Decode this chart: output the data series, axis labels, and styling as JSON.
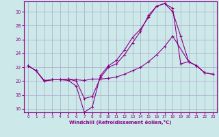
{
  "background_color": "#cce8e8",
  "grid_color": "#aaaacc",
  "line_color": "#880088",
  "xlabel": "Windchill (Refroidissement éolien,°C)",
  "xlim": [
    -0.5,
    23.5
  ],
  "ylim": [
    15.5,
    31.5
  ],
  "yticks": [
    16,
    18,
    20,
    22,
    24,
    26,
    28,
    30
  ],
  "xticks": [
    0,
    1,
    2,
    3,
    4,
    5,
    6,
    7,
    8,
    9,
    10,
    11,
    12,
    13,
    14,
    15,
    16,
    17,
    18,
    19,
    20,
    21,
    22,
    23
  ],
  "line1_x": [
    0,
    1,
    2,
    3,
    4,
    5,
    6,
    7,
    8,
    9,
    10,
    11,
    12,
    13,
    14,
    15,
    16,
    17,
    18,
    19,
    20,
    21,
    22
  ],
  "line1_y": [
    22.2,
    21.5,
    20.0,
    20.2,
    20.2,
    20.1,
    19.3,
    15.5,
    16.3,
    20.8,
    22.2,
    23.0,
    24.5,
    26.3,
    27.5,
    29.2,
    30.8,
    31.2,
    30.5,
    22.5,
    22.8,
    22.2,
    21.2
  ],
  "line2_x": [
    0,
    1,
    2,
    3,
    4,
    5,
    6,
    7,
    8,
    9,
    10,
    11,
    12,
    13,
    14,
    15,
    16,
    17,
    18,
    20,
    21,
    22,
    23
  ],
  "line2_y": [
    22.2,
    21.5,
    20.1,
    20.2,
    20.2,
    20.3,
    20.2,
    20.1,
    20.3,
    20.3,
    20.4,
    20.6,
    21.0,
    21.5,
    22.0,
    22.8,
    23.8,
    25.0,
    26.5,
    22.8,
    22.2,
    21.2,
    21.0
  ],
  "line3_x": [
    0,
    1,
    2,
    3,
    4,
    5,
    6,
    7,
    8,
    9,
    10,
    11,
    12,
    13,
    14,
    15,
    16,
    17,
    18,
    19,
    20,
    21,
    22,
    23
  ],
  "line3_y": [
    22.2,
    21.5,
    20.0,
    20.2,
    20.2,
    20.3,
    20.0,
    17.5,
    17.8,
    20.5,
    22.0,
    22.5,
    23.8,
    25.5,
    27.2,
    29.5,
    30.8,
    31.2,
    30.0,
    26.5,
    22.8,
    22.2,
    21.2,
    21.0
  ]
}
